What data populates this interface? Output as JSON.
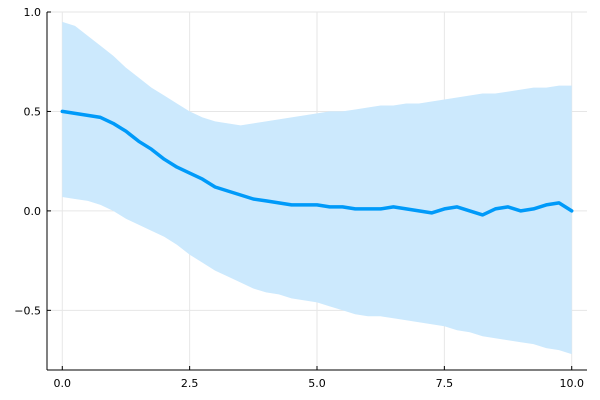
{
  "chart_data": {
    "type": "line",
    "title": "",
    "xlabel": "",
    "ylabel": "",
    "xlim": [
      -0.3,
      10.3
    ],
    "ylim": [
      -0.8,
      1.0
    ],
    "grid": true,
    "legend": "none",
    "x_ticks": [
      {
        "value": 0.0,
        "label": "0.0"
      },
      {
        "value": 2.5,
        "label": "2.5"
      },
      {
        "value": 5.0,
        "label": "5.0"
      },
      {
        "value": 7.5,
        "label": "7.5"
      },
      {
        "value": 10.0,
        "label": "10.0"
      }
    ],
    "y_ticks": [
      {
        "value": -0.5,
        "label": "−0.5"
      },
      {
        "value": 0.0,
        "label": "0.0"
      },
      {
        "value": 0.5,
        "label": "0.5"
      },
      {
        "value": 1.0,
        "label": "1.0"
      }
    ],
    "series": [
      {
        "color": "#009af9",
        "band_color": "#cce9fd",
        "x": [
          0.0,
          0.25,
          0.5,
          0.75,
          1.0,
          1.25,
          1.5,
          1.75,
          2.0,
          2.25,
          2.5,
          2.75,
          3.0,
          3.25,
          3.5,
          3.75,
          4.0,
          4.25,
          4.5,
          4.75,
          5.0,
          5.25,
          5.5,
          5.75,
          6.0,
          6.25,
          6.5,
          6.75,
          7.0,
          7.25,
          7.5,
          7.75,
          8.0,
          8.25,
          8.5,
          8.75,
          9.0,
          9.25,
          9.5,
          9.75,
          10.0
        ],
        "mean": [
          0.5,
          0.49,
          0.48,
          0.47,
          0.44,
          0.4,
          0.35,
          0.31,
          0.26,
          0.22,
          0.19,
          0.16,
          0.12,
          0.1,
          0.08,
          0.06,
          0.05,
          0.04,
          0.03,
          0.03,
          0.03,
          0.02,
          0.02,
          0.01,
          0.01,
          0.01,
          0.02,
          0.01,
          0.0,
          -0.01,
          0.01,
          0.02,
          0.0,
          -0.02,
          0.01,
          0.02,
          0.0,
          0.01,
          0.03,
          0.04,
          0.0
        ],
        "upper": [
          0.95,
          0.93,
          0.88,
          0.83,
          0.78,
          0.72,
          0.67,
          0.62,
          0.58,
          0.54,
          0.5,
          0.47,
          0.45,
          0.44,
          0.43,
          0.44,
          0.45,
          0.46,
          0.47,
          0.48,
          0.49,
          0.5,
          0.5,
          0.51,
          0.52,
          0.53,
          0.53,
          0.54,
          0.54,
          0.55,
          0.56,
          0.57,
          0.58,
          0.59,
          0.59,
          0.6,
          0.61,
          0.62,
          0.62,
          0.63,
          0.63
        ],
        "lower": [
          0.07,
          0.06,
          0.05,
          0.03,
          0.0,
          -0.04,
          -0.07,
          -0.1,
          -0.13,
          -0.17,
          -0.22,
          -0.26,
          -0.3,
          -0.33,
          -0.36,
          -0.39,
          -0.41,
          -0.42,
          -0.44,
          -0.45,
          -0.46,
          -0.48,
          -0.5,
          -0.52,
          -0.53,
          -0.53,
          -0.54,
          -0.55,
          -0.56,
          -0.57,
          -0.58,
          -0.6,
          -0.61,
          -0.63,
          -0.64,
          -0.65,
          -0.66,
          -0.67,
          -0.69,
          -0.7,
          -0.72
        ]
      }
    ]
  }
}
